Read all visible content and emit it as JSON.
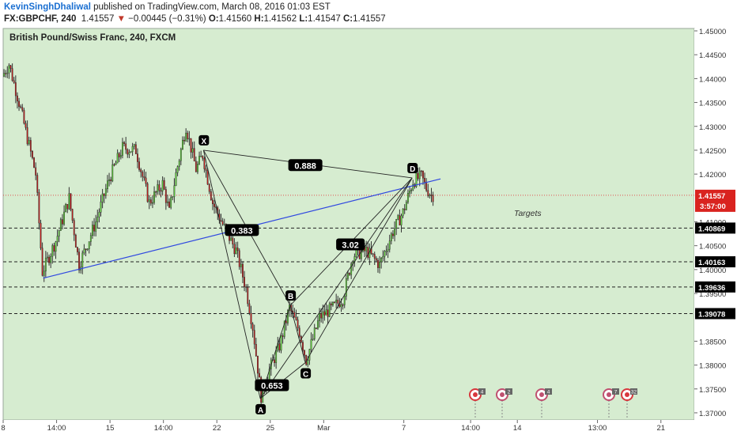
{
  "header": {
    "author": "KevinSinghDhaliwal",
    "published_text": " published on TradingView.com, March 08, 2016 01:03 EST",
    "symbol": "FX:GBPCHF, 240",
    "last": "1.41557",
    "change_arrow": "▼",
    "change": "−0.00445 (−0.31%)",
    "o_label": "O:",
    "o": "1.41560",
    "h_label": "H:",
    "h": "1.41562",
    "l_label": "L:",
    "l": "1.41547",
    "c_label": "C:",
    "c": "1.41557"
  },
  "chart_data": {
    "type": "candlestick",
    "title": "British Pound/Swiss Franc, 240, FXCM",
    "background_color": "#d6ecd0",
    "up_color": "#5fd43a",
    "down_color": "#c81e1e",
    "y_range": [
      1.3685,
      1.4505
    ],
    "y_ticks": [
      "1.45000",
      "1.44500",
      "1.44000",
      "1.43500",
      "1.43000",
      "1.42500",
      "1.42000",
      "1.41000",
      "1.40500",
      "1.40000",
      "1.39500",
      "1.38500",
      "1.38000",
      "1.37500",
      "1.37000"
    ],
    "y_tick_values": [
      1.45,
      1.445,
      1.44,
      1.435,
      1.43,
      1.425,
      1.42,
      1.41,
      1.405,
      1.4,
      1.395,
      1.385,
      1.38,
      1.375,
      1.37
    ],
    "x_ticks": [
      "8",
      "14:00",
      "15",
      "14:00",
      "22",
      "25",
      "Mar",
      "7",
      "14:00",
      "14",
      "13:00",
      "21"
    ],
    "x_tick_positions": [
      0,
      32,
      64,
      96,
      128,
      160,
      192,
      240,
      280,
      308,
      356,
      394
    ],
    "x_range": [
      0,
      414
    ],
    "candles_end_index": 257,
    "horizontal_levels": [
      {
        "value": 1.40869,
        "label": "1.40869"
      },
      {
        "value": 1.40163,
        "label": "1.40163"
      },
      {
        "value": 1.39636,
        "label": "1.39636"
      },
      {
        "value": 1.39078,
        "label": "1.39078"
      }
    ],
    "current_price": {
      "value": 1.41557,
      "label": "1.41557",
      "countdown": "3:57:00"
    },
    "trendline": {
      "from": {
        "x": 24,
        "y": 1.3982
      },
      "to": {
        "x": 262,
        "y": 1.419
      }
    },
    "pattern_points": [
      {
        "name": "X",
        "x": 120,
        "y": 1.425
      },
      {
        "name": "A",
        "x": 154,
        "y": 1.373
      },
      {
        "name": "B",
        "x": 172,
        "y": 1.3925
      },
      {
        "name": "C",
        "x": 181,
        "y": 1.3805
      },
      {
        "name": "D",
        "x": 245,
        "y": 1.4192
      }
    ],
    "ratios": [
      {
        "label": "0.888",
        "x": 181,
        "y": 1.4218
      },
      {
        "label": "0.383",
        "x": 143,
        "y": 1.4082
      },
      {
        "label": "3.02",
        "x": 208,
        "y": 1.4052
      },
      {
        "label": "0.653",
        "x": 161,
        "y": 1.3757
      }
    ],
    "annotation": {
      "label": "Targets",
      "x": 306,
      "y": 1.4112
    },
    "event_marker_counts": [
      "4",
      "2",
      "4",
      "7",
      "32"
    ]
  }
}
